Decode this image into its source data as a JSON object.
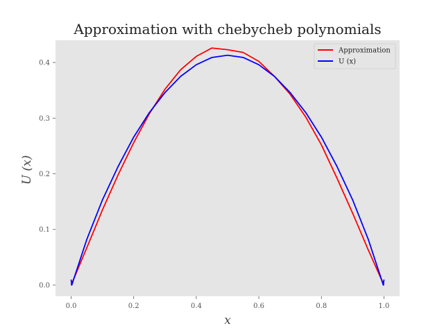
{
  "chart_data": {
    "type": "line",
    "title": "Approximation with chebycheb polynomials",
    "xlabel": "x",
    "ylabel": "U (x)",
    "xlim": [
      -0.05,
      1.05
    ],
    "ylim": [
      -0.02,
      0.44
    ],
    "xticks": [
      "0.0",
      "0.2",
      "0.4",
      "0.6",
      "0.8",
      "1.0"
    ],
    "yticks": [
      "0.0",
      "0.1",
      "0.2",
      "0.3",
      "0.4"
    ],
    "grid": false,
    "background": "#e5e5e5",
    "legend_position": "top-right",
    "series": [
      {
        "name": "Approximation",
        "color": "#ff0000",
        "x": [
          0.0,
          0.05,
          0.1,
          0.15,
          0.2,
          0.25,
          0.3,
          0.35,
          0.4,
          0.45,
          0.5,
          0.55,
          0.6,
          0.65,
          0.7,
          0.75,
          0.8,
          0.85,
          0.9,
          0.95,
          1.0
        ],
        "y": [
          0.0,
          0.067,
          0.135,
          0.198,
          0.256,
          0.308,
          0.352,
          0.387,
          0.411,
          0.426,
          0.423,
          0.418,
          0.402,
          0.375,
          0.343,
          0.302,
          0.252,
          0.192,
          0.129,
          0.063,
          0.0
        ]
      },
      {
        "name": "U (x)",
        "color": "#0000ff",
        "x": [
          0.0,
          0.002,
          0.05,
          0.1,
          0.15,
          0.2,
          0.25,
          0.3,
          0.35,
          0.4,
          0.45,
          0.5,
          0.55,
          0.6,
          0.65,
          0.7,
          0.75,
          0.8,
          0.85,
          0.9,
          0.95,
          0.998,
          1.0
        ],
        "y": [
          0.01,
          0.0,
          0.082,
          0.153,
          0.213,
          0.266,
          0.31,
          0.346,
          0.375,
          0.396,
          0.409,
          0.413,
          0.409,
          0.396,
          0.375,
          0.346,
          0.31,
          0.266,
          0.213,
          0.153,
          0.082,
          0.0,
          0.01
        ]
      }
    ]
  }
}
